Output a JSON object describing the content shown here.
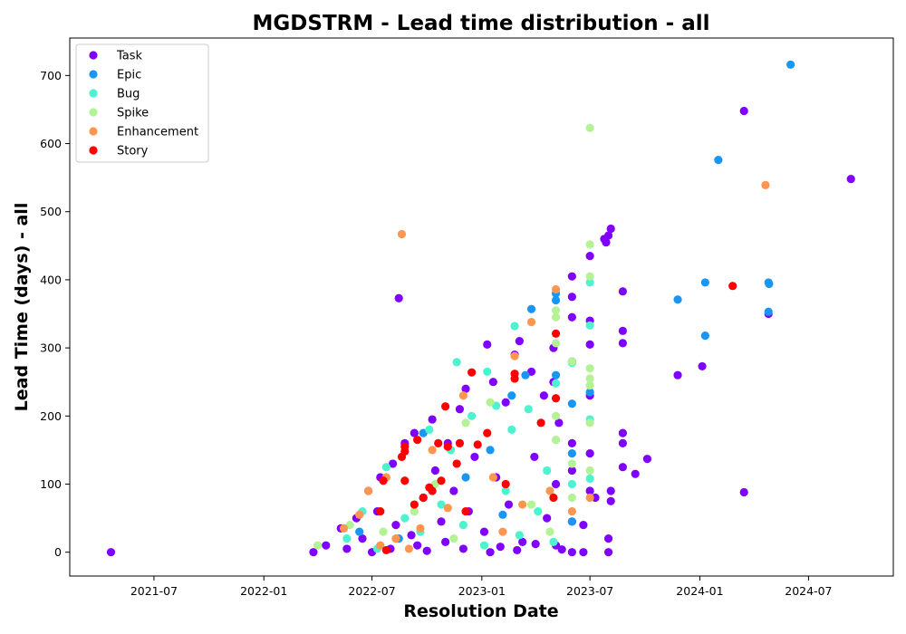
{
  "chart_data": {
    "type": "scatter",
    "title": "MGDSTRM - Lead time distribution - all",
    "xlabel": "Resolution Date",
    "ylabel": "Lead Time (days) - all",
    "xlim": [
      "2021-02-10",
      "2024-11-20"
    ],
    "ylim": [
      -35,
      755
    ],
    "x_ticks": [
      "2021-07-01",
      "2022-01-01",
      "2022-07-01",
      "2023-01-01",
      "2023-07-01",
      "2024-01-01",
      "2024-07-01"
    ],
    "x_tick_labels": [
      "2021-07",
      "2022-01",
      "2022-07",
      "2023-01",
      "2023-07",
      "2024-01",
      "2024-07"
    ],
    "y_ticks": [
      0,
      100,
      200,
      300,
      400,
      500,
      600,
      700
    ],
    "y_tick_labels": [
      "0",
      "100",
      "200",
      "300",
      "400",
      "500",
      "600",
      "700"
    ],
    "grid": false,
    "legend_position": "top-left",
    "series": [
      {
        "name": "Task",
        "color": "#8000ff",
        "points": [
          [
            "2021-04-20",
            0
          ],
          [
            "2022-03-25",
            0
          ],
          [
            "2022-08-15",
            373
          ],
          [
            "2022-05-10",
            35
          ],
          [
            "2022-06-05",
            50
          ],
          [
            "2022-06-25",
            90
          ],
          [
            "2022-07-15",
            110
          ],
          [
            "2022-08-05",
            130
          ],
          [
            "2022-08-25",
            160
          ],
          [
            "2022-09-10",
            175
          ],
          [
            "2022-10-10",
            195
          ],
          [
            "2022-11-05",
            160
          ],
          [
            "2022-11-25",
            210
          ],
          [
            "2022-12-05",
            240
          ],
          [
            "2022-12-20",
            140
          ],
          [
            "2023-01-10",
            305
          ],
          [
            "2023-01-20",
            250
          ],
          [
            "2023-02-10",
            220
          ],
          [
            "2023-02-25",
            290
          ],
          [
            "2023-03-05",
            310
          ],
          [
            "2023-03-25",
            265
          ],
          [
            "2023-04-15",
            230
          ],
          [
            "2023-05-01",
            300
          ],
          [
            "2023-05-01",
            250
          ],
          [
            "2023-05-10",
            190
          ],
          [
            "2023-06-01",
            405
          ],
          [
            "2023-06-01",
            375
          ],
          [
            "2023-06-01",
            345
          ],
          [
            "2023-06-01",
            280
          ],
          [
            "2023-06-01",
            160
          ],
          [
            "2023-06-01",
            120
          ],
          [
            "2023-06-01",
            45
          ],
          [
            "2023-06-01",
            0
          ],
          [
            "2023-06-20",
            0
          ],
          [
            "2023-06-20",
            40
          ],
          [
            "2023-07-01",
            435
          ],
          [
            "2023-07-01",
            340
          ],
          [
            "2023-07-01",
            305
          ],
          [
            "2023-07-01",
            230
          ],
          [
            "2023-07-01",
            145
          ],
          [
            "2023-07-01",
            90
          ],
          [
            "2023-07-10",
            80
          ],
          [
            "2023-07-25",
            460
          ],
          [
            "2023-07-28",
            455
          ],
          [
            "2023-08-01",
            465
          ],
          [
            "2023-08-05",
            475
          ],
          [
            "2023-08-05",
            90
          ],
          [
            "2023-08-05",
            75
          ],
          [
            "2023-08-01",
            20
          ],
          [
            "2023-08-01",
            0
          ],
          [
            "2023-08-25",
            383
          ],
          [
            "2023-08-25",
            325
          ],
          [
            "2023-08-25",
            307
          ],
          [
            "2023-08-25",
            175
          ],
          [
            "2023-08-25",
            160
          ],
          [
            "2023-08-25",
            125
          ],
          [
            "2023-09-15",
            115
          ],
          [
            "2023-10-05",
            137
          ],
          [
            "2023-11-25",
            260
          ],
          [
            "2024-01-05",
            273
          ],
          [
            "2024-03-15",
            648
          ],
          [
            "2024-03-15",
            88
          ],
          [
            "2024-04-25",
            350
          ],
          [
            "2024-09-10",
            548
          ],
          [
            "2022-04-15",
            10
          ],
          [
            "2022-05-20",
            5
          ],
          [
            "2022-06-15",
            20
          ],
          [
            "2022-07-10",
            60
          ],
          [
            "2022-08-10",
            40
          ],
          [
            "2022-09-05",
            25
          ],
          [
            "2022-09-25",
            80
          ],
          [
            "2022-10-15",
            120
          ],
          [
            "2022-10-25",
            45
          ],
          [
            "2022-11-15",
            90
          ],
          [
            "2022-12-10",
            60
          ],
          [
            "2023-01-05",
            30
          ],
          [
            "2023-01-25",
            110
          ],
          [
            "2023-02-15",
            70
          ],
          [
            "2023-03-10",
            15
          ],
          [
            "2023-03-30",
            140
          ],
          [
            "2023-04-20",
            50
          ],
          [
            "2023-05-05",
            100
          ],
          [
            "2023-05-05",
            10
          ],
          [
            "2022-07-01",
            0
          ],
          [
            "2022-08-01",
            5
          ],
          [
            "2022-09-15",
            10
          ],
          [
            "2022-10-01",
            2
          ],
          [
            "2022-11-01",
            15
          ],
          [
            "2022-12-01",
            5
          ],
          [
            "2023-01-15",
            0
          ],
          [
            "2023-02-01",
            8
          ],
          [
            "2023-03-01",
            3
          ],
          [
            "2023-04-01",
            12
          ],
          [
            "2023-05-15",
            4
          ]
        ]
      },
      {
        "name": "Epic",
        "color": "#1996f3",
        "points": [
          [
            "2024-06-01",
            716
          ],
          [
            "2024-02-01",
            576
          ],
          [
            "2024-01-10",
            396
          ],
          [
            "2024-04-25",
            396
          ],
          [
            "2024-04-26",
            394
          ],
          [
            "2023-11-25",
            371
          ],
          [
            "2024-01-10",
            318
          ],
          [
            "2024-04-25",
            353
          ],
          [
            "2023-05-05",
            380
          ],
          [
            "2023-05-05",
            370
          ],
          [
            "2023-03-25",
            357
          ],
          [
            "2023-06-01",
            218
          ],
          [
            "2023-07-01",
            235
          ],
          [
            "2023-06-01",
            145
          ],
          [
            "2023-05-05",
            260
          ],
          [
            "2023-03-15",
            260
          ],
          [
            "2023-02-20",
            230
          ],
          [
            "2022-09-25",
            175
          ],
          [
            "2022-12-05",
            110
          ],
          [
            "2023-01-15",
            150
          ],
          [
            "2023-06-01",
            45
          ],
          [
            "2022-06-10",
            30
          ],
          [
            "2022-08-15",
            20
          ],
          [
            "2023-02-05",
            55
          ]
        ]
      },
      {
        "name": "Bug",
        "color": "#4df3ce",
        "points": [
          [
            "2023-07-01",
            396
          ],
          [
            "2023-07-01",
            333
          ],
          [
            "2023-02-25",
            332
          ],
          [
            "2022-11-20",
            279
          ],
          [
            "2023-01-10",
            265
          ],
          [
            "2023-05-05",
            248
          ],
          [
            "2023-06-01",
            278
          ],
          [
            "2023-07-01",
            195
          ],
          [
            "2023-07-01",
            108
          ],
          [
            "2022-10-05",
            180
          ],
          [
            "2022-11-10",
            150
          ],
          [
            "2022-12-15",
            200
          ],
          [
            "2023-01-25",
            215
          ],
          [
            "2023-02-20",
            180
          ],
          [
            "2023-03-20",
            210
          ],
          [
            "2023-04-20",
            120
          ],
          [
            "2022-07-25",
            125
          ],
          [
            "2022-06-15",
            60
          ],
          [
            "2022-05-20",
            20
          ],
          [
            "2022-08-25",
            50
          ],
          [
            "2022-09-20",
            30
          ],
          [
            "2022-10-25",
            70
          ],
          [
            "2022-12-01",
            40
          ],
          [
            "2023-01-05",
            10
          ],
          [
            "2023-02-10",
            90
          ],
          [
            "2023-03-05",
            25
          ],
          [
            "2023-04-05",
            60
          ],
          [
            "2023-05-01",
            15
          ],
          [
            "2023-06-01",
            100
          ],
          [
            "2022-07-10",
            5
          ]
        ]
      },
      {
        "name": "Spike",
        "color": "#b3f396",
        "points": [
          [
            "2023-07-01",
            623
          ],
          [
            "2023-07-01",
            452
          ],
          [
            "2023-07-01",
            405
          ],
          [
            "2023-05-05",
            355
          ],
          [
            "2023-05-05",
            345
          ],
          [
            "2023-05-05",
            307
          ],
          [
            "2023-07-01",
            270
          ],
          [
            "2023-07-01",
            255
          ],
          [
            "2023-07-01",
            245
          ],
          [
            "2023-06-01",
            280
          ],
          [
            "2023-05-05",
            200
          ],
          [
            "2023-05-05",
            165
          ],
          [
            "2023-07-01",
            190
          ],
          [
            "2023-07-01",
            120
          ],
          [
            "2023-06-01",
            130
          ],
          [
            "2023-06-01",
            80
          ],
          [
            "2022-12-05",
            190
          ],
          [
            "2023-01-15",
            220
          ],
          [
            "2022-10-15",
            100
          ],
          [
            "2022-04-01",
            10
          ],
          [
            "2022-05-25",
            40
          ],
          [
            "2022-07-20",
            30
          ],
          [
            "2022-09-10",
            60
          ],
          [
            "2022-11-15",
            20
          ],
          [
            "2023-03-25",
            70
          ],
          [
            "2023-04-25",
            30
          ]
        ]
      },
      {
        "name": "Enhancement",
        "color": "#ff964f",
        "points": [
          [
            "2022-08-20",
            467
          ],
          [
            "2024-04-20",
            539
          ],
          [
            "2023-05-05",
            386
          ],
          [
            "2023-03-25",
            338
          ],
          [
            "2023-02-25",
            288
          ],
          [
            "2022-12-01",
            230
          ],
          [
            "2022-10-10",
            150
          ],
          [
            "2022-07-25",
            110
          ],
          [
            "2022-06-25",
            90
          ],
          [
            "2022-05-15",
            35
          ],
          [
            "2022-06-10",
            55
          ],
          [
            "2022-08-10",
            20
          ],
          [
            "2022-09-20",
            35
          ],
          [
            "2022-11-05",
            65
          ],
          [
            "2023-01-20",
            110
          ],
          [
            "2023-03-10",
            70
          ],
          [
            "2023-04-25",
            90
          ],
          [
            "2023-07-01",
            80
          ],
          [
            "2023-06-01",
            60
          ],
          [
            "2022-07-15",
            10
          ],
          [
            "2022-09-01",
            5
          ],
          [
            "2023-02-05",
            30
          ]
        ]
      },
      {
        "name": "Story",
        "color": "#ff0000",
        "points": [
          [
            "2024-02-25",
            391
          ],
          [
            "2023-05-05",
            321
          ],
          [
            "2023-05-05",
            226
          ],
          [
            "2023-02-25",
            262
          ],
          [
            "2023-02-25",
            255
          ],
          [
            "2022-12-15",
            264
          ],
          [
            "2022-11-01",
            214
          ],
          [
            "2022-11-25",
            160
          ],
          [
            "2022-11-05",
            155
          ],
          [
            "2022-10-20",
            160
          ],
          [
            "2022-09-15",
            165
          ],
          [
            "2022-08-25",
            155
          ],
          [
            "2022-08-25",
            148
          ],
          [
            "2022-08-20",
            140
          ],
          [
            "2022-10-25",
            105
          ],
          [
            "2022-10-05",
            95
          ],
          [
            "2022-09-25",
            80
          ],
          [
            "2022-09-10",
            70
          ],
          [
            "2022-08-25",
            105
          ],
          [
            "2022-07-20",
            105
          ],
          [
            "2022-07-15",
            60
          ],
          [
            "2022-07-25",
            3
          ],
          [
            "2022-12-25",
            158
          ],
          [
            "2023-01-10",
            175
          ],
          [
            "2023-04-10",
            190
          ],
          [
            "2023-05-01",
            80
          ],
          [
            "2023-02-10",
            100
          ],
          [
            "2022-12-05",
            60
          ],
          [
            "2022-11-20",
            130
          ],
          [
            "2022-10-10",
            90
          ]
        ]
      }
    ]
  }
}
